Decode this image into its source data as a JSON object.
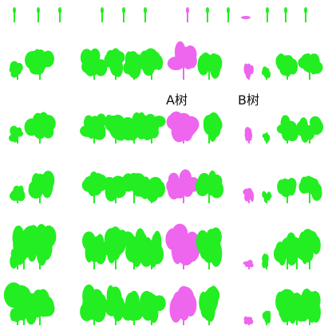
{
  "labels": {
    "a": "A树",
    "b": "B树"
  }
}
